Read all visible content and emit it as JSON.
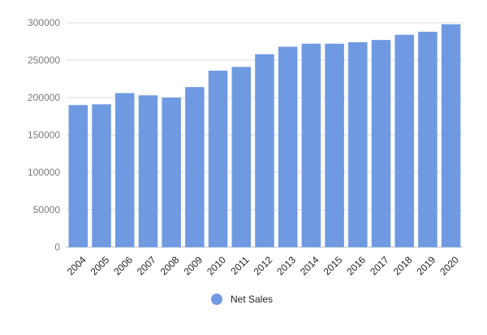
{
  "chart_data": {
    "type": "bar",
    "categories": [
      "2004",
      "2005",
      "2006",
      "2007",
      "2008",
      "2009",
      "2010",
      "2011",
      "2012",
      "2013",
      "2014",
      "2015",
      "2016",
      "2017",
      "2018",
      "2019",
      "2020"
    ],
    "series": [
      {
        "name": "Net Sales",
        "values": [
          190000,
          191000,
          206000,
          203000,
          200000,
          214000,
          236000,
          241000,
          258000,
          268000,
          272000,
          272000,
          274000,
          277000,
          284000,
          288000,
          298000
        ]
      }
    ],
    "title": "",
    "xlabel": "",
    "ylabel": "",
    "ylim": [
      0,
      300000
    ],
    "yticks": [
      0,
      50000,
      100000,
      150000,
      200000,
      250000,
      300000
    ],
    "grid": true,
    "legend_position": "bottom",
    "colors": {
      "bar": "#6f9ae2",
      "grid": "#d9d9d9",
      "tick": "#7a7a7a"
    }
  }
}
